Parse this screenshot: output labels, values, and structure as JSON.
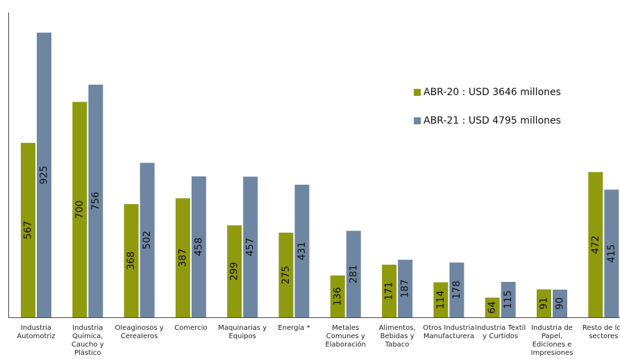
{
  "chart_data": {
    "type": "bar",
    "title": "",
    "xlabel": "",
    "ylabel": "",
    "ylim": [
      0,
      1000
    ],
    "grid": false,
    "legend_position": "right",
    "categories": [
      [
        "Industria",
        "Automotriz"
      ],
      [
        "Industria",
        "Química,",
        "Caucho y",
        "Plástico"
      ],
      [
        "Oleaginosos y",
        "Cerealeros"
      ],
      [
        "Comercio"
      ],
      [
        "Maquinarias y",
        "Equipos"
      ],
      [
        "Energía *"
      ],
      [
        "Metales",
        "Comunes y",
        "Elaboración"
      ],
      [
        "Alimentos,",
        "Bebidas y",
        "Tabaco"
      ],
      [
        "Otros Industria",
        "Manufacturera"
      ],
      [
        "Industria Textil",
        "y Curtidos"
      ],
      [
        "Industria de",
        "Papel,",
        "Ediciones e",
        "Impresiones"
      ],
      [
        "Resto de los",
        "sectores"
      ]
    ],
    "series": [
      {
        "name": "ABR-20 : USD 3646 millones",
        "color": "#8f9a0f",
        "values": [
          567,
          700,
          368,
          387,
          299,
          275,
          136,
          171,
          114,
          64,
          91,
          472
        ]
      },
      {
        "name": "ABR-21 : USD 4795 millones",
        "color": "#6f86a3",
        "values": [
          925,
          756,
          502,
          458,
          457,
          431,
          281,
          187,
          178,
          115,
          90,
          415
        ]
      }
    ]
  }
}
